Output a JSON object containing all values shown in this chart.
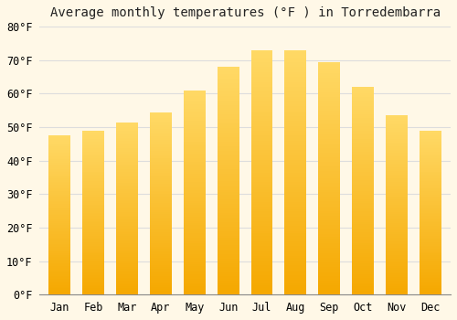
{
  "title": "Average monthly temperatures (°F ) in Torredembarra",
  "months": [
    "Jan",
    "Feb",
    "Mar",
    "Apr",
    "May",
    "Jun",
    "Jul",
    "Aug",
    "Sep",
    "Oct",
    "Nov",
    "Dec"
  ],
  "values": [
    47.5,
    49.0,
    51.5,
    54.5,
    61.0,
    68.0,
    73.0,
    73.0,
    69.5,
    62.0,
    53.5,
    49.0
  ],
  "bar_color_bottom": "#F5A800",
  "bar_color_top": "#FFD966",
  "ylim": [
    0,
    80
  ],
  "yticks": [
    0,
    10,
    20,
    30,
    40,
    50,
    60,
    70,
    80
  ],
  "background_color": "#FFF8E7",
  "grid_color": "#DDDDDD",
  "title_fontsize": 10,
  "tick_fontsize": 8.5,
  "bar_width": 0.65,
  "gradient_steps": 100
}
